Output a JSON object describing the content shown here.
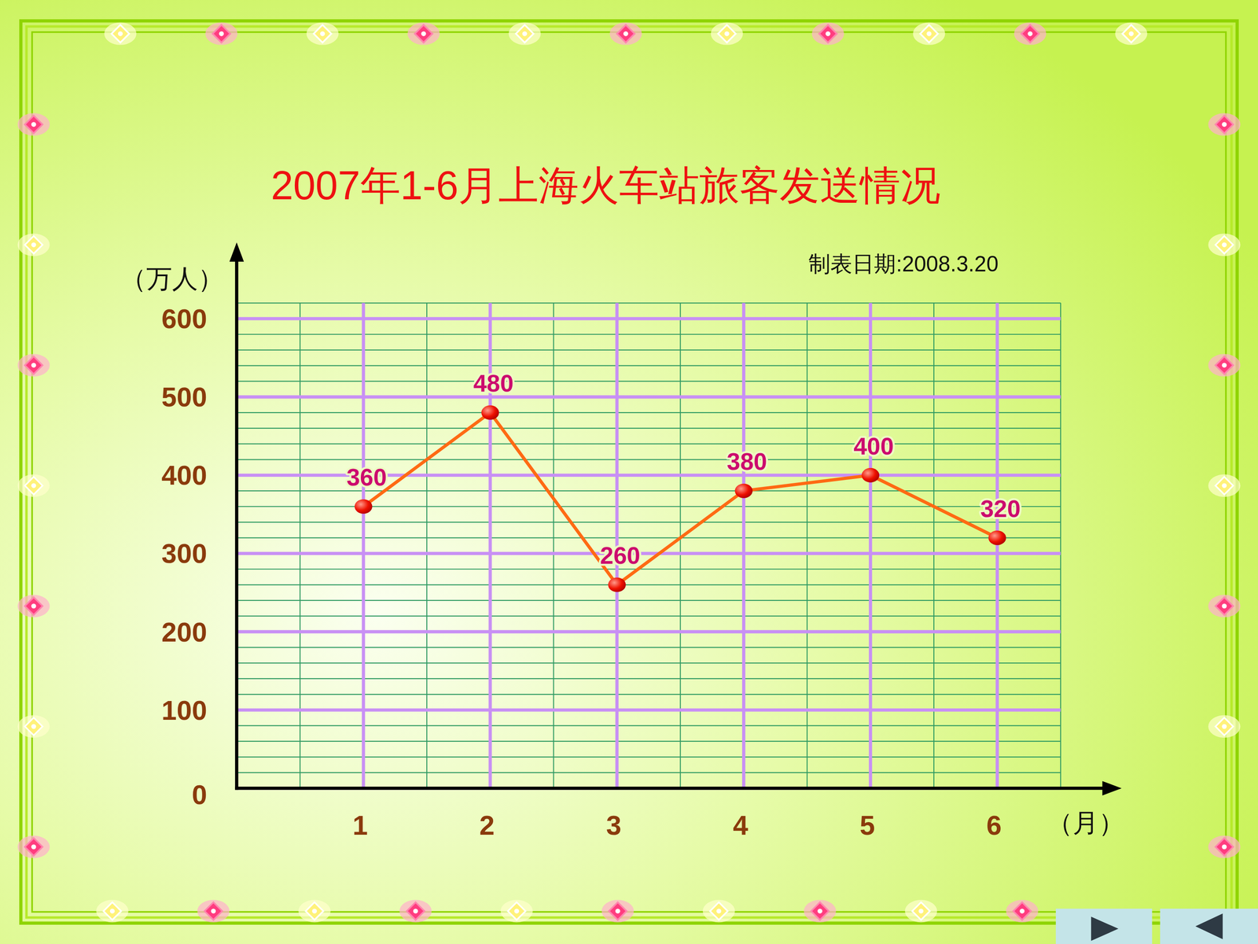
{
  "chart_data": {
    "type": "line",
    "title": "2007年1-6月上海火车站旅客发送情况",
    "annotations": [
      "制表日期:2008.3.20"
    ],
    "y_label": "（万人）",
    "x_label": "（月）",
    "categories": [
      "1",
      "2",
      "3",
      "4",
      "5",
      "6"
    ],
    "values": [
      360,
      480,
      260,
      380,
      400,
      320
    ],
    "color": "#ff6a13",
    "marker": "circle",
    "ylim": [
      0,
      620
    ],
    "yticks": [
      0,
      100,
      200,
      300,
      400,
      500,
      600
    ],
    "grid": true,
    "data_labels": true
  }
}
